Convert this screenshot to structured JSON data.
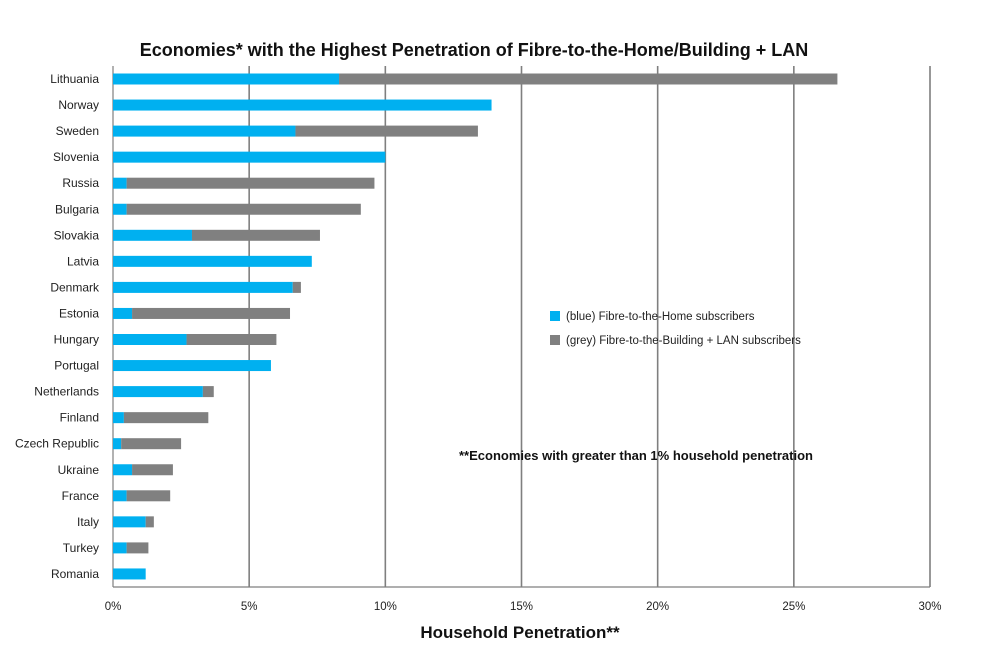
{
  "colors": {
    "fibre_home": "#00B0F0",
    "fibre_building_lan": "#808080",
    "grid": "#7F7F7F"
  },
  "chart_data": {
    "type": "bar",
    "orientation": "horizontal",
    "stacked": true,
    "title": "Economies* with the Highest Penetration of Fibre-to-the-Home/Building + LAN",
    "xlabel": "Household Penetration**",
    "ylabel": "",
    "xlim": [
      0,
      30
    ],
    "x_ticks": [
      0,
      5,
      10,
      15,
      20,
      25,
      30
    ],
    "x_tick_labels": [
      "0%",
      "5%",
      "10%",
      "15%",
      "20%",
      "25%",
      "30%"
    ],
    "grid": "vertical",
    "legend_position": "center-right",
    "categories": [
      "Lithuania",
      "Norway",
      "Sweden",
      "Slovenia",
      "Russia",
      "Bulgaria",
      "Slovakia",
      "Latvia",
      "Denmark",
      "Estonia",
      "Hungary",
      "Portugal",
      "Netherlands",
      "Finland",
      "Czech Republic",
      "Ukraine",
      "France",
      "Italy",
      "Turkey",
      "Romania"
    ],
    "series": [
      {
        "name": "(blue) Fibre-to-the-Home subscribers",
        "color": "#00B0F0",
        "values": [
          8.3,
          13.9,
          6.7,
          10.0,
          0.5,
          0.5,
          2.9,
          7.3,
          6.6,
          0.7,
          2.7,
          5.8,
          3.3,
          0.4,
          0.3,
          0.7,
          0.5,
          1.2,
          0.5,
          1.2
        ]
      },
      {
        "name": "(grey) Fibre-to-the-Building + LAN subscribers",
        "color": "#808080",
        "values": [
          18.3,
          0.0,
          6.7,
          0.0,
          9.1,
          8.6,
          4.7,
          0.0,
          0.3,
          5.8,
          3.3,
          0.0,
          0.4,
          3.1,
          2.2,
          1.5,
          1.6,
          0.3,
          0.8,
          0.0
        ]
      }
    ],
    "annotation": "**Economies with greater than 1% household penetration"
  }
}
